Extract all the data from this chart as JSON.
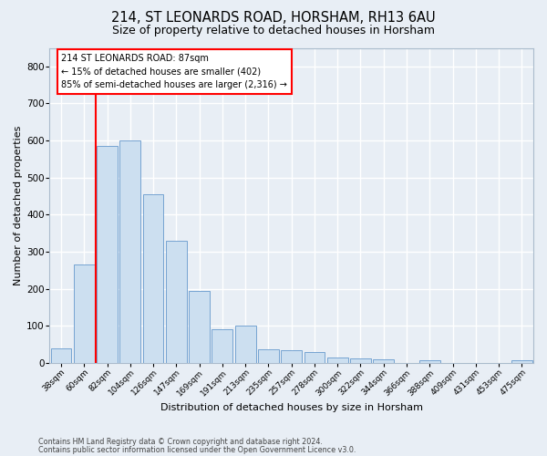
{
  "title1": "214, ST LEONARDS ROAD, HORSHAM, RH13 6AU",
  "title2": "Size of property relative to detached houses in Horsham",
  "xlabel": "Distribution of detached houses by size in Horsham",
  "ylabel": "Number of detached properties",
  "categories": [
    "38sqm",
    "60sqm",
    "82sqm",
    "104sqm",
    "126sqm",
    "147sqm",
    "169sqm",
    "191sqm",
    "213sqm",
    "235sqm",
    "257sqm",
    "278sqm",
    "300sqm",
    "322sqm",
    "344sqm",
    "366sqm",
    "388sqm",
    "409sqm",
    "431sqm",
    "453sqm",
    "475sqm"
  ],
  "values": [
    38,
    265,
    585,
    600,
    455,
    330,
    195,
    90,
    100,
    37,
    35,
    30,
    15,
    12,
    10,
    0,
    8,
    0,
    0,
    0,
    7
  ],
  "bar_color": "#ccdff0",
  "bar_edge_color": "#6699cc",
  "red_line_x": 1.5,
  "annotation_text": "214 ST LEONARDS ROAD: 87sqm\n← 15% of detached houses are smaller (402)\n85% of semi-detached houses are larger (2,316) →",
  "annotation_box_color": "white",
  "annotation_box_edge": "red",
  "ylim": [
    0,
    850
  ],
  "yticks": [
    0,
    100,
    200,
    300,
    400,
    500,
    600,
    700,
    800
  ],
  "footer1": "Contains HM Land Registry data © Crown copyright and database right 2024.",
  "footer2": "Contains public sector information licensed under the Open Government Licence v3.0.",
  "bg_color": "#e8eef5",
  "grid_color": "white",
  "title1_fontsize": 10.5,
  "title2_fontsize": 9,
  "tick_fontsize": 6.5,
  "ylabel_fontsize": 8,
  "xlabel_fontsize": 8,
  "footer_fontsize": 5.8,
  "ann_fontsize": 7.0
}
